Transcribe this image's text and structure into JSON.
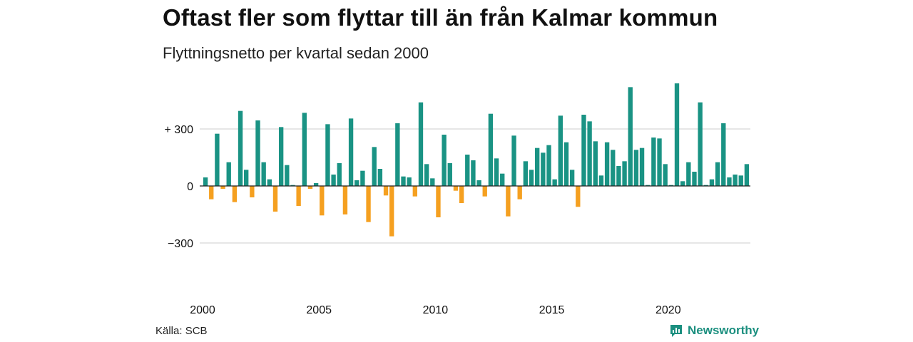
{
  "chart_data": {
    "type": "bar",
    "title": "Oftast fler som flyttar till än från Kalmar kommun",
    "subtitle": "Flyttningsnetto per kvartal sedan 2000",
    "xlabel": "",
    "ylabel": "",
    "ylim": [
      -430,
      580
    ],
    "y_ticks": [
      -300,
      0,
      300
    ],
    "y_tick_labels": [
      "−300",
      "0",
      "+ 300"
    ],
    "x_ticks": [
      2000,
      2005,
      2010,
      2015,
      2020
    ],
    "x_tick_labels": [
      "2000",
      "2005",
      "2010",
      "2015",
      "2020"
    ],
    "start_year": 2000,
    "grid": true,
    "colors": {
      "positive": "#1a9384",
      "negative": "#f5a020"
    },
    "series": [
      {
        "values": [
          45,
          -70,
          275,
          -15,
          125,
          -85,
          395,
          85,
          -60,
          345,
          125,
          35,
          -135,
          310,
          110,
          5,
          -105,
          385,
          -15,
          15,
          -155,
          325,
          60,
          120,
          -150,
          355,
          30,
          80,
          -190,
          205,
          90,
          -50,
          -265,
          330,
          50,
          45,
          -55,
          440,
          115,
          40,
          -165,
          270,
          120,
          -25,
          -90,
          165,
          135,
          30,
          -55,
          380,
          145,
          65,
          -160,
          265,
          -70,
          130,
          85,
          200,
          175,
          215,
          35,
          370,
          230,
          85,
          -110,
          375,
          340,
          235,
          55,
          230,
          190,
          105,
          130,
          520,
          190,
          200,
          5,
          255,
          250,
          115,
          5,
          540,
          25,
          125,
          75,
          440,
          5,
          35,
          125,
          330,
          45,
          60,
          55,
          115
        ]
      }
    ]
  },
  "source": "Källa: SCB",
  "brand": {
    "name": "Newsworthy",
    "icon": "newsworthy-logo-icon",
    "color": "#1b8f7f"
  }
}
